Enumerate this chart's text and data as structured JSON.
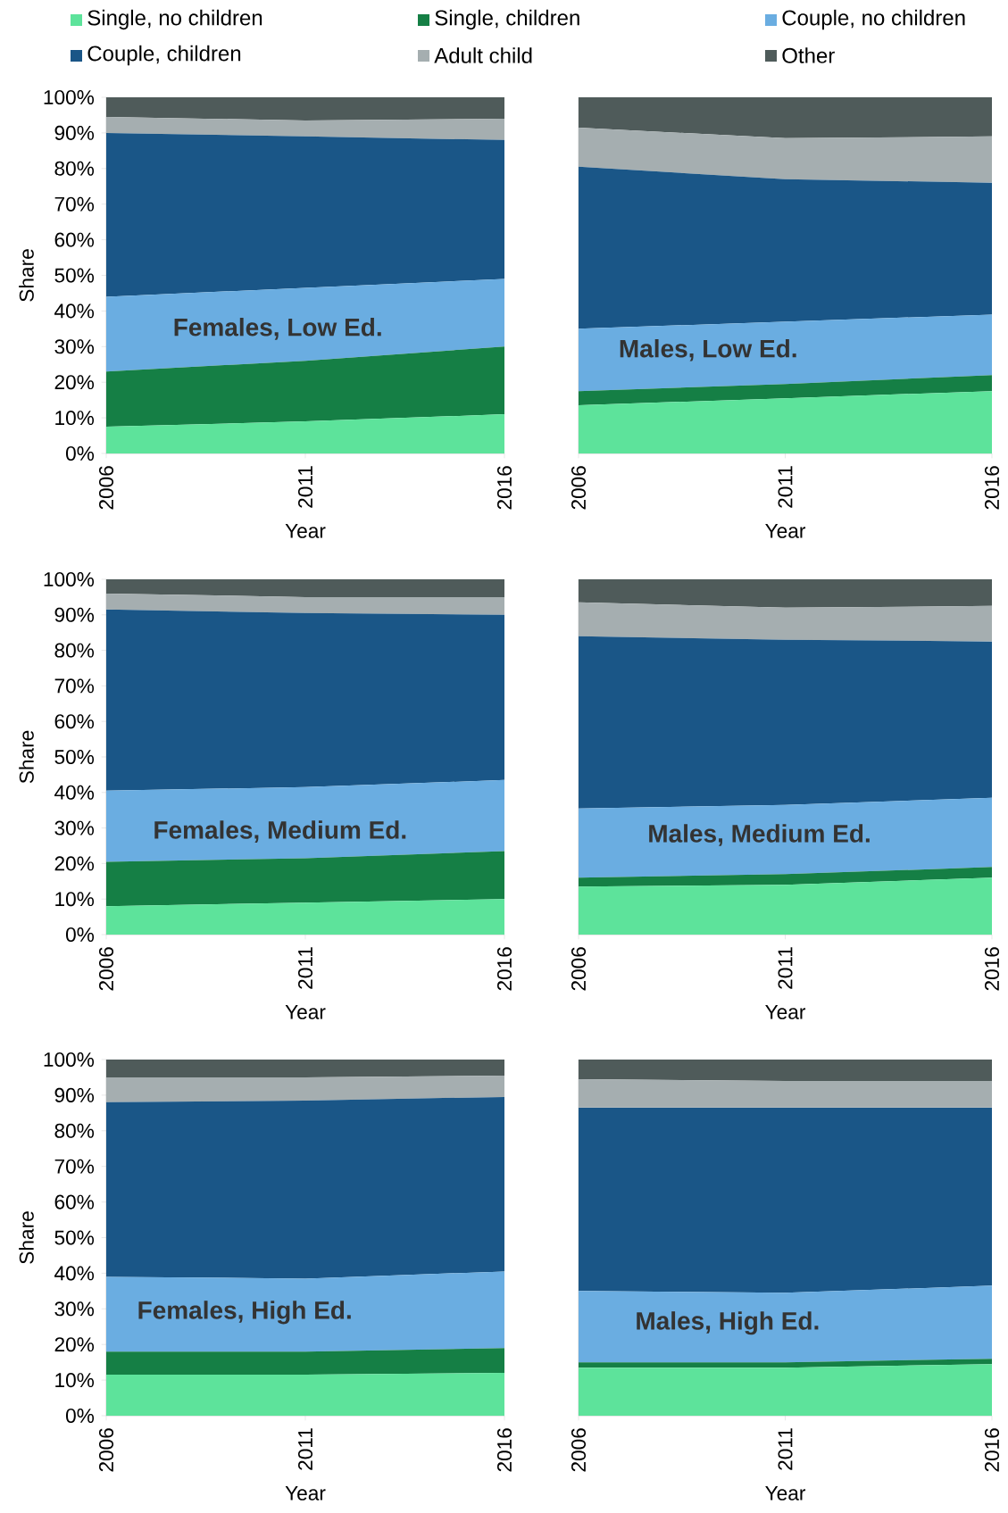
{
  "chart_data": [
    {
      "type": "area",
      "stacked": true,
      "legend": "top",
      "annotations": [
        "Females, Low Ed."
      ],
      "xlabel": "Year",
      "ylabel": "Share",
      "x": [
        2006,
        2011,
        2016
      ],
      "xlim": [
        2006,
        2016
      ],
      "xticks": [
        2006,
        2011,
        2016
      ],
      "ylim": [
        0,
        100
      ],
      "yticks": [
        {
          "value": 0,
          "label": "0%"
        },
        {
          "value": 10,
          "label": "10%"
        },
        {
          "value": 20,
          "label": "20%"
        },
        {
          "value": 30,
          "label": "30%"
        },
        {
          "value": 40,
          "label": "40%"
        },
        {
          "value": 50,
          "label": "50%"
        },
        {
          "value": 60,
          "label": "60%"
        },
        {
          "value": 70,
          "label": "70%"
        },
        {
          "value": 80,
          "label": "80%"
        },
        {
          "value": 90,
          "label": "90%"
        },
        {
          "value": 100,
          "label": "100%"
        }
      ],
      "series": [
        {
          "name": "Single, no children",
          "color": "#5de39b",
          "values": [
            7.5,
            9,
            11
          ]
        },
        {
          "name": "Single, children",
          "color": "#157f45",
          "values": [
            15.5,
            17,
            19
          ]
        },
        {
          "name": "Couple, no children",
          "color": "#6aade1",
          "values": [
            21,
            20.5,
            19
          ]
        },
        {
          "name": "Couple, children",
          "color": "#1a5687",
          "values": [
            46,
            42.5,
            39
          ]
        },
        {
          "name": "Adult child",
          "color": "#a5aeb0",
          "values": [
            4.5,
            4.5,
            6
          ]
        },
        {
          "name": "Other",
          "color": "#4f5b5a",
          "values": [
            5.5,
            6.5,
            6
          ]
        }
      ]
    },
    {
      "type": "area",
      "stacked": true,
      "tick_labels": "x",
      "annotations": [
        "Males, Low Ed."
      ],
      "xlabel": "Year",
      "x": [
        2006,
        2011,
        2016
      ],
      "xlim": [
        2006,
        2016
      ],
      "xticks": [
        2006,
        2011,
        2016
      ],
      "ylim": [
        0,
        100
      ],
      "series": [
        {
          "color": "#5de39b",
          "values": [
            13.5,
            15.5,
            17.5
          ]
        },
        {
          "color": "#157f45",
          "values": [
            4,
            4,
            4.5
          ]
        },
        {
          "color": "#6aade1",
          "values": [
            17.5,
            17.5,
            17
          ]
        },
        {
          "color": "#1a5687",
          "values": [
            45.5,
            40,
            37
          ]
        },
        {
          "color": "#a5aeb0",
          "values": [
            11,
            11.5,
            13
          ]
        },
        {
          "color": "#4f5b5a",
          "values": [
            8.5,
            11.5,
            11
          ]
        }
      ]
    },
    {
      "type": "area",
      "stacked": true,
      "annotations": [
        "Females, Medium Ed."
      ],
      "xlabel": "Year",
      "ylabel": "Share",
      "x": [
        2006,
        2011,
        2016
      ],
      "xlim": [
        2006,
        2016
      ],
      "xticks": [
        2006,
        2011,
        2016
      ],
      "ylim": [
        0,
        100
      ],
      "yticks": [
        {
          "value": 0,
          "label": "0%"
        },
        {
          "value": 10,
          "label": "10%"
        },
        {
          "value": 20,
          "label": "20%"
        },
        {
          "value": 30,
          "label": "30%"
        },
        {
          "value": 40,
          "label": "40%"
        },
        {
          "value": 50,
          "label": "50%"
        },
        {
          "value": 60,
          "label": "60%"
        },
        {
          "value": 70,
          "label": "70%"
        },
        {
          "value": 80,
          "label": "80%"
        },
        {
          "value": 90,
          "label": "90%"
        },
        {
          "value": 100,
          "label": "100%"
        }
      ],
      "series": [
        {
          "color": "#5de39b",
          "values": [
            8,
            9,
            10
          ]
        },
        {
          "color": "#157f45",
          "values": [
            12.5,
            12.5,
            13.5
          ]
        },
        {
          "color": "#6aade1",
          "values": [
            20,
            20,
            20
          ]
        },
        {
          "color": "#1a5687",
          "values": [
            51,
            49,
            46.5
          ]
        },
        {
          "color": "#a5aeb0",
          "values": [
            4.5,
            4.5,
            5
          ]
        },
        {
          "color": "#4f5b5a",
          "values": [
            4,
            5,
            5
          ]
        }
      ]
    },
    {
      "type": "area",
      "stacked": true,
      "tick_labels": "x",
      "annotations": [
        "Males, Medium Ed."
      ],
      "xlabel": "Year",
      "x": [
        2006,
        2011,
        2016
      ],
      "xlim": [
        2006,
        2016
      ],
      "xticks": [
        2006,
        2011,
        2016
      ],
      "ylim": [
        0,
        100
      ],
      "series": [
        {
          "color": "#5de39b",
          "values": [
            13.5,
            14,
            16
          ]
        },
        {
          "color": "#157f45",
          "values": [
            2.5,
            3,
            3
          ]
        },
        {
          "color": "#6aade1",
          "values": [
            19.5,
            19.5,
            19.5
          ]
        },
        {
          "color": "#1a5687",
          "values": [
            48.5,
            46.5,
            44
          ]
        },
        {
          "color": "#a5aeb0",
          "values": [
            9.5,
            9,
            10
          ]
        },
        {
          "color": "#4f5b5a",
          "values": [
            6.5,
            8,
            7.5
          ]
        }
      ]
    },
    {
      "type": "area",
      "stacked": true,
      "annotations": [
        "Females, High Ed."
      ],
      "xlabel": "Year",
      "ylabel": "Share",
      "x": [
        2006,
        2011,
        2016
      ],
      "xlim": [
        2006,
        2016
      ],
      "xticks": [
        2006,
        2011,
        2016
      ],
      "ylim": [
        0,
        100
      ],
      "yticks": [
        {
          "value": 0,
          "label": "0%"
        },
        {
          "value": 10,
          "label": "10%"
        },
        {
          "value": 20,
          "label": "20%"
        },
        {
          "value": 30,
          "label": "30%"
        },
        {
          "value": 40,
          "label": "40%"
        },
        {
          "value": 50,
          "label": "50%"
        },
        {
          "value": 60,
          "label": "60%"
        },
        {
          "value": 70,
          "label": "70%"
        },
        {
          "value": 80,
          "label": "80%"
        },
        {
          "value": 90,
          "label": "90%"
        },
        {
          "value": 100,
          "label": "100%"
        }
      ],
      "series": [
        {
          "color": "#5de39b",
          "values": [
            11.5,
            11.5,
            12
          ]
        },
        {
          "color": "#157f45",
          "values": [
            6.5,
            6.5,
            7
          ]
        },
        {
          "color": "#6aade1",
          "values": [
            21,
            20.5,
            21.5
          ]
        },
        {
          "color": "#1a5687",
          "values": [
            49,
            50,
            49
          ]
        },
        {
          "color": "#a5aeb0",
          "values": [
            7,
            6.5,
            6
          ]
        },
        {
          "color": "#4f5b5a",
          "values": [
            5,
            5,
            4.5
          ]
        }
      ]
    },
    {
      "type": "area",
      "stacked": true,
      "tick_labels": "x",
      "annotations": [
        "Males, High Ed."
      ],
      "xlabel": "Year",
      "x": [
        2006,
        2011,
        2016
      ],
      "xlim": [
        2006,
        2016
      ],
      "xticks": [
        2006,
        2011,
        2016
      ],
      "ylim": [
        0,
        100
      ],
      "series": [
        {
          "color": "#5de39b",
          "values": [
            13.5,
            13.5,
            14.5
          ]
        },
        {
          "color": "#157f45",
          "values": [
            1.5,
            1.5,
            1.5
          ]
        },
        {
          "color": "#6aade1",
          "values": [
            20,
            19.5,
            20.5
          ]
        },
        {
          "color": "#1a5687",
          "values": [
            51.5,
            52,
            50
          ]
        },
        {
          "color": "#a5aeb0",
          "values": [
            8,
            7.5,
            7.5
          ]
        },
        {
          "color": "#4f5b5a",
          "values": [
            5.5,
            6,
            6
          ]
        }
      ]
    }
  ]
}
